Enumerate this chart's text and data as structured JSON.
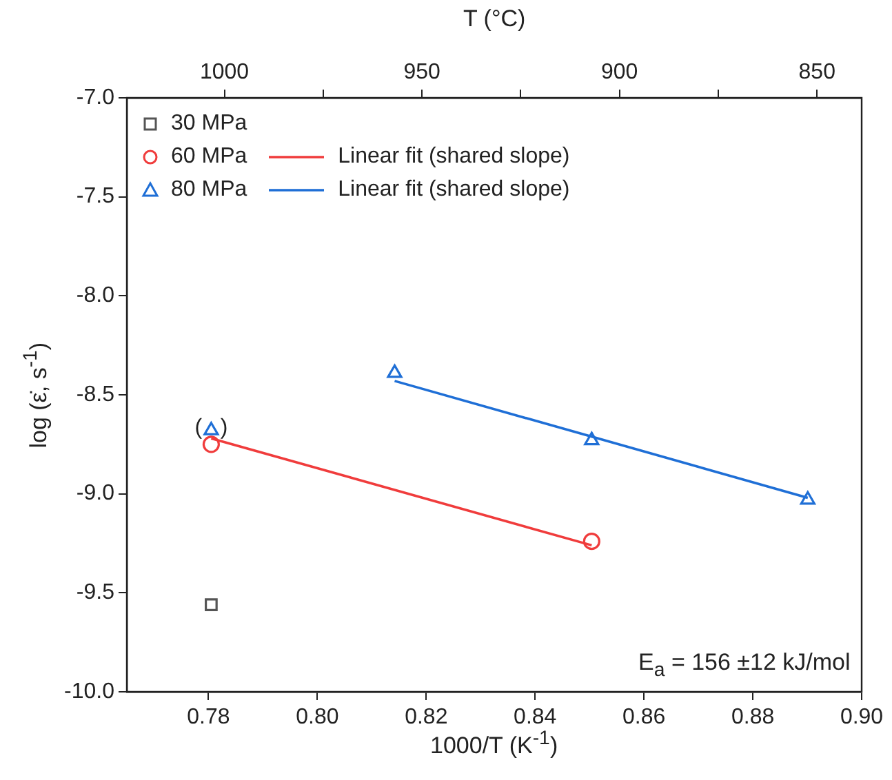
{
  "chart_data": {
    "type": "scatter",
    "xlabel": "1000/T (K$^{-1}$)",
    "ylabel": "log (ε̇, s$^{-1}$)",
    "x2label": "T (°C)",
    "xlim": [
      0.765,
      0.9
    ],
    "xticks": [
      0.78,
      {
        "value": 0.8,
        "label": "0.80"
      },
      0.82,
      0.84,
      0.86,
      0.88,
      {
        "value": 0.9,
        "label": "0.90"
      }
    ],
    "x2lim": [
      1024.7,
      838.7
    ],
    "x2ticks": [
      1000,
      {
        "value": 975,
        "label": null
      },
      950,
      {
        "value": 925,
        "label": null
      },
      900,
      {
        "value": 875,
        "label": null
      },
      850
    ],
    "ylim": [
      -10,
      -7
    ],
    "yticks": [
      {
        "value": -10,
        "label": "-10.0"
      },
      {
        "value": -9.5,
        "label": "-9.5"
      },
      {
        "value": -9,
        "label": "-9.0"
      },
      {
        "value": -8.5,
        "label": "-8.5"
      },
      {
        "value": -8,
        "label": "-8.0"
      },
      {
        "value": -7.5,
        "label": "-7.5"
      },
      {
        "value": -7,
        "label": "-7.0"
      }
    ],
    "series": [
      {
        "name": "30 MPa",
        "marker": "square",
        "color": "#555555",
        "x": [
          0.7805
        ],
        "values": [
          -9.56
        ]
      },
      {
        "name": "60 MPa",
        "marker": "circle",
        "color": "#f03c3c",
        "x": [
          0.7805,
          0.8504
        ],
        "values": [
          -8.75,
          -9.24
        ]
      },
      {
        "name": "80 MPa",
        "marker": "triangle",
        "color": "#1f6fd6",
        "x": [
          0.7805,
          0.8142,
          0.8504,
          0.8901
        ],
        "values": [
          -8.68,
          -8.39,
          -8.73,
          -9.03
        ]
      },
      {
        "name": "Linear fit (shared slope)",
        "type": "line",
        "marker": "none",
        "color": "#f03c3c",
        "x": [
          0.7805,
          0.8504
        ],
        "values": [
          -8.72,
          -9.26
        ]
      },
      {
        "name": "Linear fit (shared slope)",
        "type": "line",
        "marker": "none",
        "color": "#1f6fd6",
        "x": [
          0.8142,
          0.8901
        ],
        "values": [
          -8.43,
          -9.02
        ]
      }
    ],
    "legend": "top left",
    "grid": false,
    "annotations": [
      {
        "text": "(   )",
        "x": 0.7805,
        "y": -8.68
      },
      "E$_{a}$ = 156 ±12 kJ/mol"
    ]
  }
}
